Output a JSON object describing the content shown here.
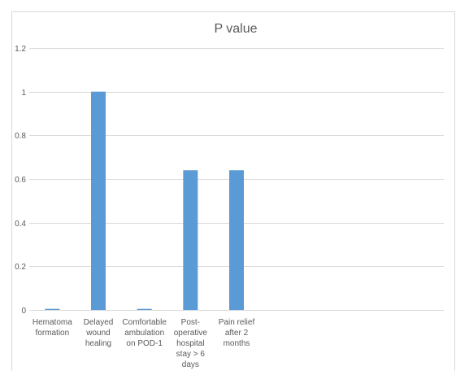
{
  "chart_data": {
    "type": "bar",
    "title": "P value",
    "xlabel": "",
    "ylabel": "",
    "categories": [
      [
        "Hematoma",
        "formation"
      ],
      [
        "Delayed",
        "wound",
        "healing"
      ],
      [
        "Comfortable",
        "ambulation",
        "on POD-1"
      ],
      [
        "Post-",
        "operative",
        "hospital",
        "stay > 6",
        "days"
      ],
      [
        "Pain relief",
        "after 2",
        "months"
      ],
      [
        ""
      ],
      [
        ""
      ],
      [
        ""
      ],
      [
        ""
      ]
    ],
    "values": [
      0.005,
      1.0,
      0.005,
      0.64,
      0.64,
      null,
      null,
      null,
      null
    ],
    "ylim": [
      0,
      1.2
    ],
    "yticks": [
      "0",
      "0.2",
      "0.4",
      "0.6",
      "0.8",
      "1",
      "1.2"
    ],
    "grid": true,
    "legend": "none",
    "colors": {
      "bar": "#5b9bd5",
      "grid": "#d9d9d9",
      "text": "#595959",
      "border": "#d9d9d9"
    }
  }
}
